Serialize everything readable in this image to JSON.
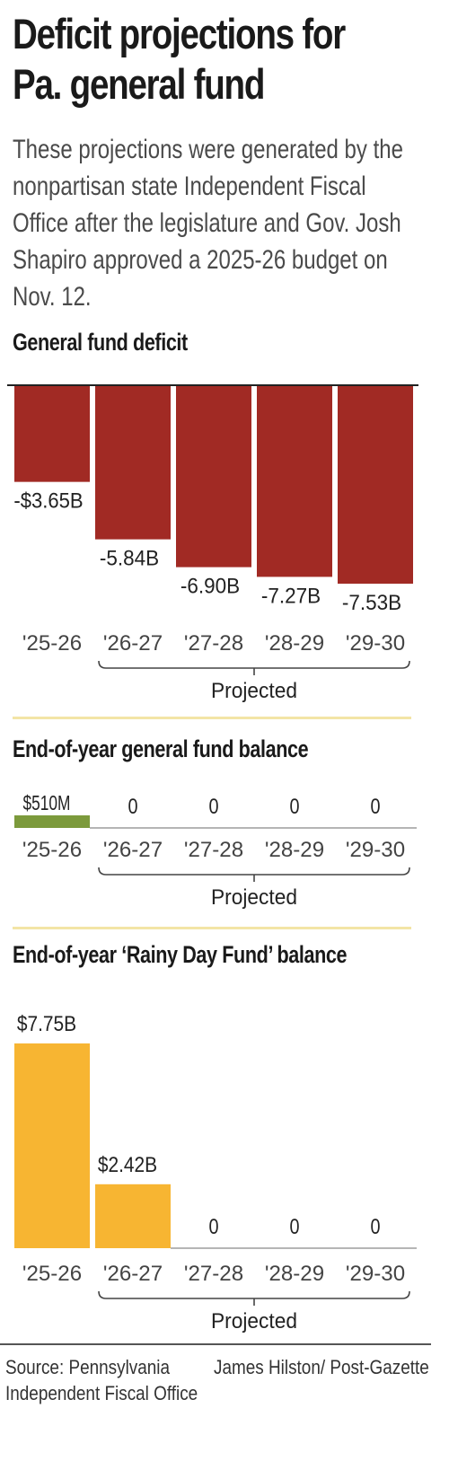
{
  "title": "Deficit projections for Pa. general fund",
  "subtitle": "These projections were generated by the nonpartisan state Independent Fiscal Office after the legislature and Gov. Josh Shapiro approved a 2025-26 budget on Nov. 12.",
  "source": "Source: Pennsylvania Independent Fiscal Office",
  "credit": "James Hilston/ Post-Gazette",
  "colors": {
    "deficit_bar": "#a12a24",
    "balance_bar": "#7c9a3c",
    "rainy_bar": "#f7b532",
    "zero_line": "#b5b5b5",
    "divider": "#f3e5a6",
    "bracket": "#444444"
  },
  "chart_data": [
    {
      "type": "bar",
      "title": "General fund deficit",
      "categories": [
        "'25-26",
        "'26-27",
        "'27-28",
        "'28-29",
        "'29-30"
      ],
      "values": [
        -3.65,
        -5.84,
        -6.9,
        -7.27,
        -7.53
      ],
      "value_labels": [
        "-$3.65B",
        "-5.84B",
        "-6.90B",
        "-7.27B",
        "-7.53B"
      ],
      "unit": "billions of dollars",
      "ylim": [
        -7.53,
        0
      ],
      "projected_label": "Projected",
      "projected_categories": [
        "'26-27",
        "'27-28",
        "'28-29",
        "'29-30"
      ]
    },
    {
      "type": "bar",
      "title": "End-of-year general fund balance",
      "categories": [
        "'25-26",
        "'26-27",
        "'27-28",
        "'28-29",
        "'29-30"
      ],
      "values": [
        510,
        0,
        0,
        0,
        0
      ],
      "value_labels": [
        "$510M",
        "0",
        "0",
        "0",
        "0"
      ],
      "unit": "millions of dollars",
      "projected_label": "Projected",
      "projected_categories": [
        "'26-27",
        "'27-28",
        "'28-29",
        "'29-30"
      ]
    },
    {
      "type": "bar",
      "title": "End-of-year ‘Rainy Day Fund’ balance",
      "categories": [
        "'25-26",
        "'26-27",
        "'27-28",
        "'28-29",
        "'29-30"
      ],
      "values": [
        7.75,
        2.42,
        0,
        0,
        0
      ],
      "value_labels": [
        "$7.75B",
        "$2.42B",
        "0",
        "0",
        "0"
      ],
      "unit": "billions of dollars",
      "ylim": [
        0,
        7.75
      ],
      "projected_label": "Projected",
      "projected_categories": [
        "'26-27",
        "'27-28",
        "'28-29",
        "'29-30"
      ]
    }
  ]
}
